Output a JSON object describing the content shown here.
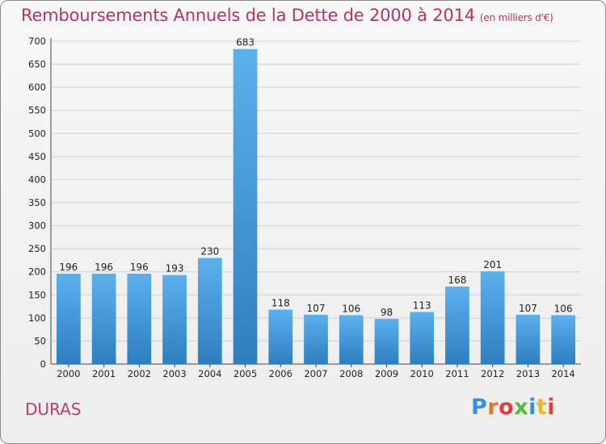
{
  "title": "Remboursements Annuels de la Dette de 2000 à 2014",
  "unit_note": "(en milliers d'€)",
  "commune": "DURAS",
  "logo_text": "Proxiti",
  "colors": {
    "title": "#b9306a",
    "bar_light": "#5cb0ec",
    "bar_dark": "#2e7fc0",
    "grid": "#c9d1de"
  },
  "chart_data": {
    "type": "bar",
    "title": "Remboursements Annuels de la Dette de 2000 à 2014",
    "ylabel": "",
    "xlabel": "",
    "categories": [
      "2000",
      "2001",
      "2002",
      "2003",
      "2004",
      "2005",
      "2006",
      "2007",
      "2008",
      "2009",
      "2010",
      "2011",
      "2012",
      "2013",
      "2014"
    ],
    "values": [
      196,
      196,
      196,
      193,
      230,
      683,
      118,
      107,
      106,
      98,
      113,
      168,
      201,
      107,
      106
    ],
    "ylim": [
      0,
      700
    ],
    "yticks": [
      0,
      50,
      100,
      150,
      200,
      250,
      300,
      350,
      400,
      450,
      500,
      550,
      600,
      650,
      700
    ],
    "grid": true,
    "data_labels": true
  }
}
